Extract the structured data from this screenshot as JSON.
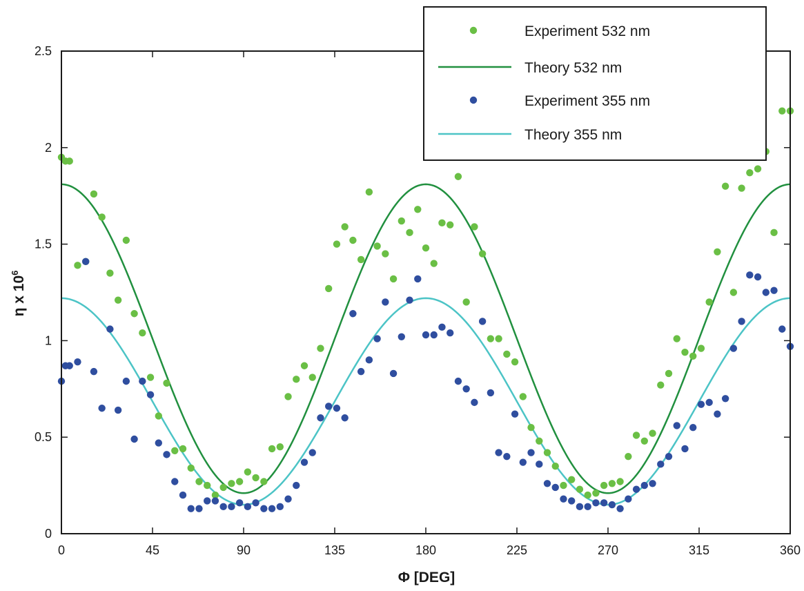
{
  "chart_data": {
    "type": "scatter",
    "xlabel": "Φ [DEG]",
    "ylabel_main": "η x 10",
    "ylabel_sup": "6",
    "xlim": [
      0,
      360
    ],
    "ylim": [
      0,
      2.5
    ],
    "x_ticks": [
      0,
      45,
      90,
      135,
      180,
      225,
      270,
      315,
      360
    ],
    "x_tick_labels": [
      "0",
      "45",
      "90",
      "135",
      "180",
      "225",
      "270",
      "315",
      "360"
    ],
    "y_ticks": [
      0,
      0.5,
      1,
      1.5,
      2,
      2.5
    ],
    "y_tick_labels": [
      "0",
      "0.5",
      "1",
      "1.5",
      "2",
      "2.5"
    ],
    "grid": false,
    "legend_position": "top-right",
    "series": [
      {
        "name": "Experiment 532 nm",
        "kind": "points",
        "color": "#6abf45",
        "x": [
          0,
          2,
          4,
          8,
          12,
          16,
          20,
          24,
          28,
          32,
          36,
          40,
          44,
          48,
          52,
          56,
          60,
          64,
          68,
          72,
          76,
          80,
          84,
          88,
          92,
          96,
          100,
          104,
          108,
          112,
          116,
          120,
          124,
          128,
          132,
          136,
          140,
          144,
          148,
          152,
          156,
          160,
          164,
          168,
          172,
          176,
          180,
          184,
          188,
          192,
          196,
          200,
          204,
          208,
          212,
          216,
          220,
          224,
          228,
          232,
          236,
          240,
          244,
          248,
          252,
          256,
          260,
          264,
          268,
          272,
          276,
          280,
          284,
          288,
          292,
          296,
          300,
          304,
          308,
          312,
          316,
          320,
          324,
          328,
          332,
          336,
          340,
          344,
          348,
          352,
          356,
          360
        ],
        "y": [
          1.95,
          1.93,
          1.93,
          1.39,
          1.41,
          1.76,
          1.64,
          1.35,
          1.21,
          1.52,
          1.14,
          1.04,
          0.81,
          0.61,
          0.78,
          0.43,
          0.44,
          0.34,
          0.27,
          0.25,
          0.2,
          0.24,
          0.26,
          0.27,
          0.32,
          0.29,
          0.27,
          0.44,
          0.45,
          0.71,
          0.8,
          0.87,
          0.81,
          0.96,
          1.27,
          1.5,
          1.59,
          1.52,
          1.42,
          1.77,
          1.49,
          1.45,
          1.32,
          1.62,
          1.56,
          1.68,
          1.48,
          1.4,
          1.61,
          1.6,
          1.85,
          1.2,
          1.59,
          1.45,
          1.01,
          1.01,
          0.93,
          0.89,
          0.71,
          0.55,
          0.48,
          0.42,
          0.35,
          0.25,
          0.28,
          0.23,
          0.2,
          0.21,
          0.25,
          0.26,
          0.27,
          0.4,
          0.51,
          0.48,
          0.52,
          0.77,
          0.83,
          1.01,
          0.94,
          0.92,
          0.96,
          1.2,
          1.46,
          1.8,
          1.25,
          1.79,
          1.87,
          1.89,
          1.98,
          1.56,
          2.19,
          2.19
        ]
      },
      {
        "name": "Theory 532 nm",
        "kind": "line",
        "color": "#21903f",
        "model": {
          "baseline": 0.21,
          "amplitude": 1.6,
          "period_deg": 180
        }
      },
      {
        "name": "Experiment 355 nm",
        "kind": "points",
        "color": "#2f4e9f",
        "x": [
          0,
          2,
          4,
          8,
          12,
          16,
          20,
          24,
          28,
          32,
          36,
          40,
          44,
          48,
          52,
          56,
          60,
          64,
          68,
          72,
          76,
          80,
          84,
          88,
          92,
          96,
          100,
          104,
          108,
          112,
          116,
          120,
          124,
          128,
          132,
          136,
          140,
          144,
          148,
          152,
          156,
          160,
          164,
          168,
          172,
          176,
          180,
          184,
          188,
          192,
          196,
          200,
          204,
          208,
          212,
          216,
          220,
          224,
          228,
          232,
          236,
          240,
          244,
          248,
          252,
          256,
          260,
          264,
          268,
          272,
          276,
          280,
          284,
          288,
          292,
          296,
          300,
          304,
          308,
          312,
          316,
          320,
          324,
          328,
          332,
          336,
          340,
          344,
          348,
          352,
          356,
          360
        ],
        "y": [
          0.79,
          0.87,
          0.87,
          0.89,
          1.41,
          0.84,
          0.65,
          1.06,
          0.64,
          0.79,
          0.49,
          0.79,
          0.72,
          0.47,
          0.41,
          0.27,
          0.2,
          0.13,
          0.13,
          0.17,
          0.17,
          0.14,
          0.14,
          0.16,
          0.14,
          0.16,
          0.13,
          0.13,
          0.14,
          0.18,
          0.25,
          0.37,
          0.42,
          0.6,
          0.66,
          0.65,
          0.6,
          1.14,
          0.84,
          0.9,
          1.01,
          1.2,
          0.83,
          1.02,
          1.21,
          1.32,
          1.03,
          1.03,
          1.07,
          1.04,
          0.79,
          0.75,
          0.68,
          1.1,
          0.73,
          0.42,
          0.4,
          0.62,
          0.37,
          0.42,
          0.36,
          0.26,
          0.24,
          0.18,
          0.17,
          0.14,
          0.14,
          0.16,
          0.16,
          0.15,
          0.13,
          0.18,
          0.23,
          0.25,
          0.26,
          0.36,
          0.4,
          0.56,
          0.44,
          0.55,
          0.67,
          0.68,
          0.62,
          0.7,
          0.96,
          1.1,
          1.34,
          1.33,
          1.25,
          1.26,
          1.06,
          0.97
        ]
      },
      {
        "name": "Theory 355 nm",
        "kind": "line",
        "color": "#4cc4c6",
        "model": {
          "baseline": 0.15,
          "amplitude": 1.07,
          "period_deg": 180
        }
      }
    ]
  }
}
